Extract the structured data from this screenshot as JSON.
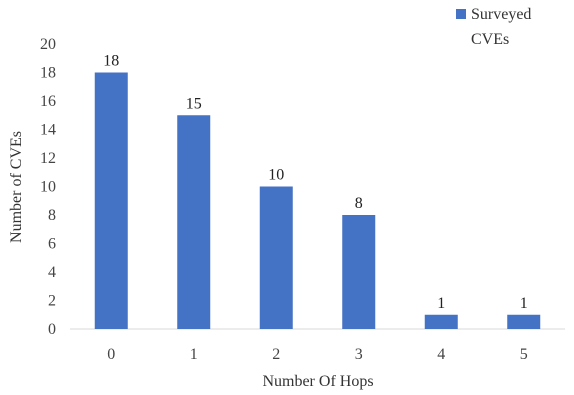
{
  "chart_data": {
    "type": "bar",
    "categories": [
      "0",
      "1",
      "2",
      "3",
      "4",
      "5"
    ],
    "series": [
      {
        "name": "Surveyed CVEs",
        "values": [
          18,
          15,
          10,
          8,
          1,
          1
        ],
        "color": "#4472C4"
      }
    ],
    "title": "",
    "xlabel": "Number Of Hops",
    "ylabel": "Number of CVEs",
    "ylim": [
      0,
      20
    ],
    "yticks": [
      0,
      2,
      4,
      6,
      8,
      10,
      12,
      14,
      16,
      18,
      20
    ],
    "grid": false,
    "legend_position": "top-right",
    "legend_lines": [
      "Surveyed",
      "CVEs"
    ],
    "data_labels": [
      "18",
      "15",
      "10",
      "8",
      "1",
      "1"
    ]
  }
}
